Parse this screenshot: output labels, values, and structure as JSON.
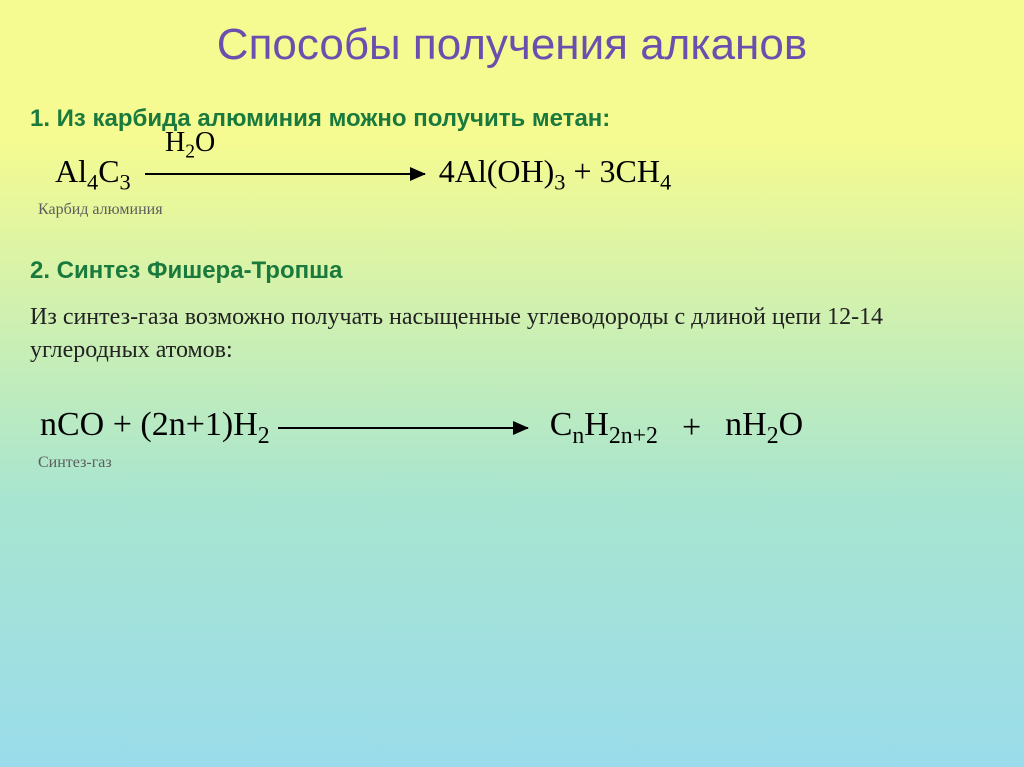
{
  "title": {
    "text": "Способы получения алканов",
    "color": "#6a4fae"
  },
  "section1": {
    "heading": "1. Из карбида алюминия можно получить метан:",
    "heading_color": "#1a7a3d",
    "reagent_label": "Карбид алюминия",
    "label_color": "#5d5d5d",
    "eq": {
      "lhs": "Al",
      "lhs_sub1": "4",
      "lhs_mid": "C",
      "lhs_sub2": "3",
      "over": "H",
      "over_sub": "2",
      "over_tail": "O",
      "rhs1": "4Al(OH)",
      "rhs1_sub": "3",
      "plus": " + ",
      "rhs2": "3CH",
      "rhs2_sub": "4"
    }
  },
  "section2": {
    "heading": "2. Синтез Фишера-Тропша",
    "heading_color": "#1a7a3d",
    "desc": "Из синтез-газа возможно получать насыщенные углеводороды с длиной цепи 12-14 углеродных атомов:",
    "desc_color": "#222222",
    "reagent_label": "Синтез-газ",
    "label_color": "#5d5d5d",
    "eq": {
      "lhs1": "nCO + (2n+1)H",
      "lhs1_sub": "2",
      "rhs1": "C",
      "rhs1_sub1": "n",
      "rhs1_mid": "H",
      "rhs1_sub2": "2n+2",
      "plus": "+",
      "rhs2": "nH",
      "rhs2_sub": "2",
      "rhs2_tail": "O"
    }
  },
  "styling": {
    "title_fontsize": 44,
    "heading_fontsize": 24,
    "equation_fontsize": 32,
    "label_fontsize": 16,
    "bg_gradient": [
      "#f5fb90",
      "#d9f3a8",
      "#a8e5d0",
      "#9adceb"
    ]
  }
}
